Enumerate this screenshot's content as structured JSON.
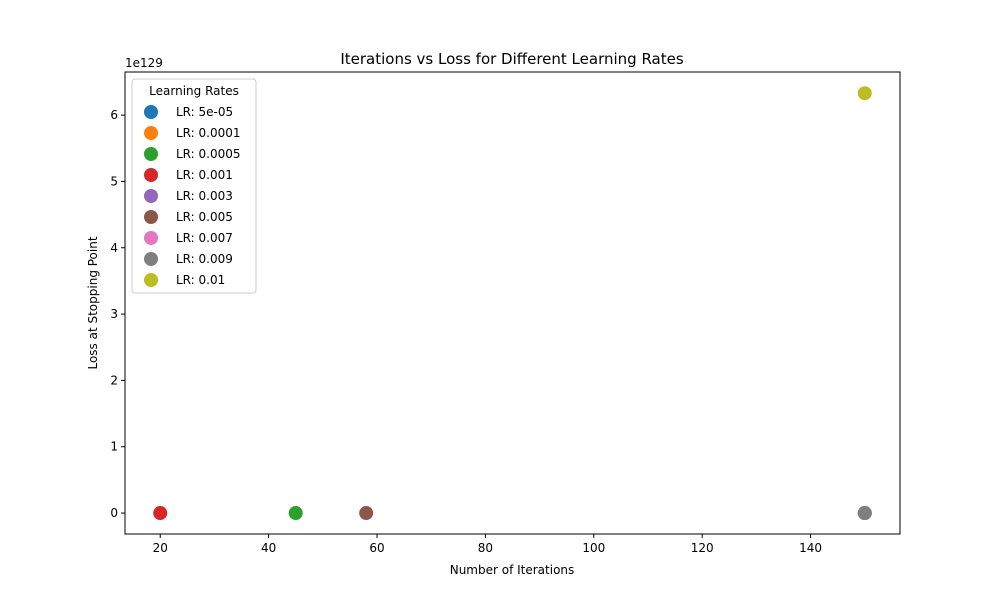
{
  "chart_data": {
    "type": "scatter",
    "title": "Iterations vs Loss for Different Learning Rates",
    "xlabel": "Number of Iterations",
    "ylabel": "Loss at Stopping Point",
    "y_offset_label": "1e129",
    "xlim": [
      13.5,
      156.5
    ],
    "ylim": [
      -0.316,
      6.65
    ],
    "xticks": [
      20,
      40,
      60,
      80,
      100,
      120,
      140
    ],
    "yticks": [
      0,
      1,
      2,
      3,
      4,
      5,
      6
    ],
    "legend_title": "Learning Rates",
    "legend_position": "upper-left",
    "grid": false,
    "series": [
      {
        "name": "LR: 5e-05",
        "color": "#1f77b4",
        "x": 150,
        "y": 0
      },
      {
        "name": "LR: 0.0001",
        "color": "#ff7f0e",
        "x": 150,
        "y": 0
      },
      {
        "name": "LR: 0.0005",
        "color": "#2ca02c",
        "x": 45,
        "y": 0
      },
      {
        "name": "LR: 0.001",
        "color": "#d62728",
        "x": 20,
        "y": 0
      },
      {
        "name": "LR: 0.003",
        "color": "#9467bd",
        "x": 150,
        "y": 0
      },
      {
        "name": "LR: 0.005",
        "color": "#8c564b",
        "x": 58,
        "y": 0
      },
      {
        "name": "LR: 0.007",
        "color": "#e377c2",
        "x": 150,
        "y": 0
      },
      {
        "name": "LR: 0.009",
        "color": "#7f7f7f",
        "x": 150,
        "y": 0
      },
      {
        "name": "LR: 0.01",
        "color": "#bcbd22",
        "x": 150,
        "y": 6.33
      }
    ]
  }
}
